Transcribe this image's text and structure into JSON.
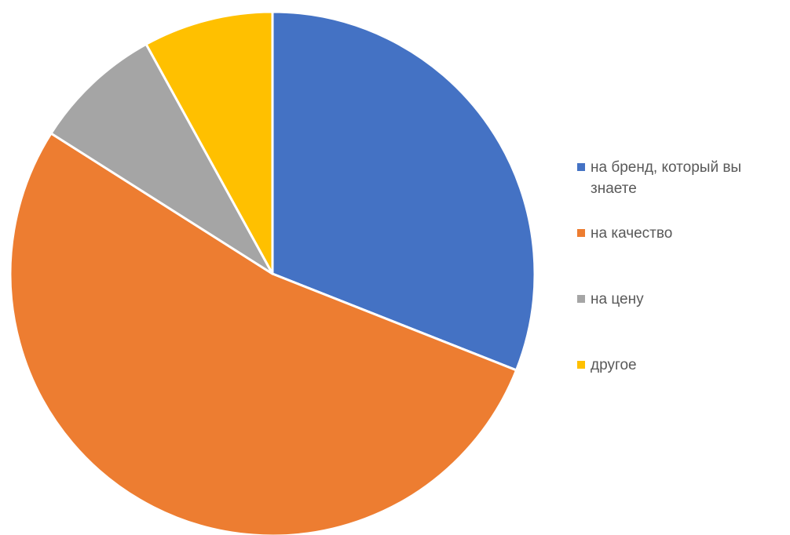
{
  "chart_data": {
    "type": "pie",
    "title": "",
    "legend_position": "right",
    "start_angle_deg": 0,
    "direction": "clockwise",
    "slices": [
      {
        "label": "на бренд, который вы знаете",
        "value": 31,
        "color": "#4472C4"
      },
      {
        "label": "на качество",
        "value": 53,
        "color": "#ED7D31"
      },
      {
        "label": "на цену",
        "value": 8,
        "color": "#A5A5A5"
      },
      {
        "label": "другое",
        "value": 8,
        "color": "#FFC000"
      }
    ]
  }
}
